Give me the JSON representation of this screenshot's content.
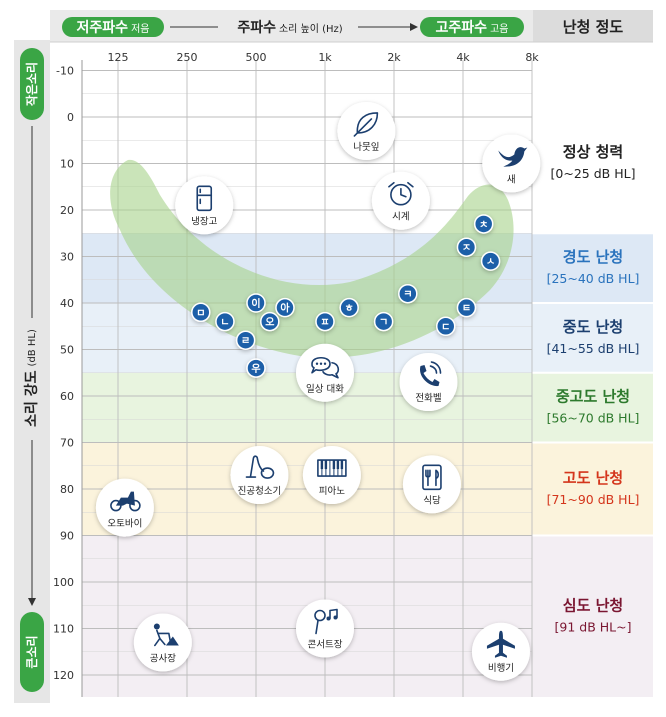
{
  "header": {
    "low_freq_label": "저주파수",
    "low_freq_sub": "저음",
    "freq_title": "주파수",
    "freq_sub": "소리 높이 (Hz)",
    "high_freq_label": "고주파수",
    "high_freq_sub": "고음",
    "degree_title": "난청 정도"
  },
  "y_axis": {
    "label": "소리 강도",
    "unit": "(dB HL)",
    "top_label": "작은소리",
    "bottom_label": "큰소리",
    "ticks": [
      "-10",
      "0",
      "10",
      "20",
      "30",
      "40",
      "50",
      "60",
      "70",
      "80",
      "90",
      "100",
      "110",
      "120"
    ]
  },
  "x_axis": {
    "ticks": [
      "125",
      "250",
      "500",
      "1k",
      "2k",
      "4k",
      "8k"
    ]
  },
  "bands": [
    {
      "name": "정상 청력",
      "range": "[0~25 dB HL]",
      "color": "#ffffff",
      "text_color": "#222222",
      "from_db": -13,
      "to_db": 25
    },
    {
      "name": "경도 난청",
      "range": "[25~40 dB HL]",
      "color": "#dde8f5",
      "text_color": "#2a73bd",
      "from_db": 25,
      "to_db": 40
    },
    {
      "name": "중도 난청",
      "range": "[41~55 dB HL]",
      "color": "#e8f0f8",
      "text_color": "#1c3f6f",
      "from_db": 40,
      "to_db": 55
    },
    {
      "name": "중고도 난청",
      "range": "[56~70 dB HL]",
      "color": "#e8f4df",
      "text_color": "#2d7a2d",
      "from_db": 55,
      "to_db": 70
    },
    {
      "name": "고도 난청",
      "range": "[71~90 dB HL]",
      "color": "#fbf3dc",
      "text_color": "#d4351c",
      "from_db": 70,
      "to_db": 90
    },
    {
      "name": "심도 난청",
      "range": "[91 dB HL~]",
      "color": "#f3eef3",
      "text_color": "#7a1631",
      "from_db": 90,
      "to_db": 126
    }
  ],
  "sounds": [
    {
      "label": "나뭇잎",
      "icon": "leaf-icon",
      "freq_oct": 3.6,
      "db": 3
    },
    {
      "label": "새",
      "icon": "bird-icon",
      "freq_oct": 5.7,
      "db": 10
    },
    {
      "label": "냉장고",
      "icon": "refrigerator-icon",
      "freq_oct": 1.25,
      "db": 19
    },
    {
      "label": "시계",
      "icon": "clock-icon",
      "freq_oct": 4.1,
      "db": 18
    },
    {
      "label": "일상 대화",
      "icon": "conversation-icon",
      "freq_oct": 3.0,
      "db": 55
    },
    {
      "label": "전화벨",
      "icon": "phone-ring-icon",
      "freq_oct": 4.5,
      "db": 57
    },
    {
      "label": "진공청소기",
      "icon": "vacuum-icon",
      "freq_oct": 2.05,
      "db": 77
    },
    {
      "label": "피아노",
      "icon": "piano-icon",
      "freq_oct": 3.1,
      "db": 77
    },
    {
      "label": "식당",
      "icon": "restaurant-icon",
      "freq_oct": 4.55,
      "db": 79
    },
    {
      "label": "오토바이",
      "icon": "motorcycle-icon",
      "freq_oct": 0.1,
      "db": 84
    },
    {
      "label": "공사장",
      "icon": "construction-icon",
      "freq_oct": 0.65,
      "db": 113
    },
    {
      "label": "콘서트장",
      "icon": "concert-icon",
      "freq_oct": 3.0,
      "db": 110
    },
    {
      "label": "비행기",
      "icon": "airplane-icon",
      "freq_oct": 5.55,
      "db": 115
    }
  ],
  "phonemes": [
    {
      "ch": "ㅁ",
      "freq_oct": 1.2,
      "db": 42
    },
    {
      "ch": "ㄴ",
      "freq_oct": 1.55,
      "db": 44
    },
    {
      "ch": "이",
      "freq_oct": 2.0,
      "db": 40
    },
    {
      "ch": "아",
      "freq_oct": 2.42,
      "db": 41
    },
    {
      "ch": "오",
      "freq_oct": 2.2,
      "db": 44
    },
    {
      "ch": "ㄹ",
      "freq_oct": 1.85,
      "db": 48
    },
    {
      "ch": "우",
      "freq_oct": 2.0,
      "db": 54
    },
    {
      "ch": "ㅍ",
      "freq_oct": 3.0,
      "db": 44
    },
    {
      "ch": "ㅎ",
      "freq_oct": 3.35,
      "db": 41
    },
    {
      "ch": "ㄱ",
      "freq_oct": 3.85,
      "db": 44
    },
    {
      "ch": "ㅋ",
      "freq_oct": 4.2,
      "db": 38
    },
    {
      "ch": "ㄷ",
      "freq_oct": 4.75,
      "db": 45
    },
    {
      "ch": "ㅌ",
      "freq_oct": 5.05,
      "db": 41
    },
    {
      "ch": "ㅊ",
      "freq_oct": 5.3,
      "db": 23
    },
    {
      "ch": "ㅈ",
      "freq_oct": 5.05,
      "db": 28
    },
    {
      "ch": "ㅅ",
      "freq_oct": 5.4,
      "db": 31
    }
  ],
  "colors": {
    "header_green": "#3aa545",
    "header_gray": "#dcdcdc",
    "grid": "#b9b9b9",
    "phoneme_fill": "#1b5fa8",
    "banana_fill": "#a6d28a"
  }
}
